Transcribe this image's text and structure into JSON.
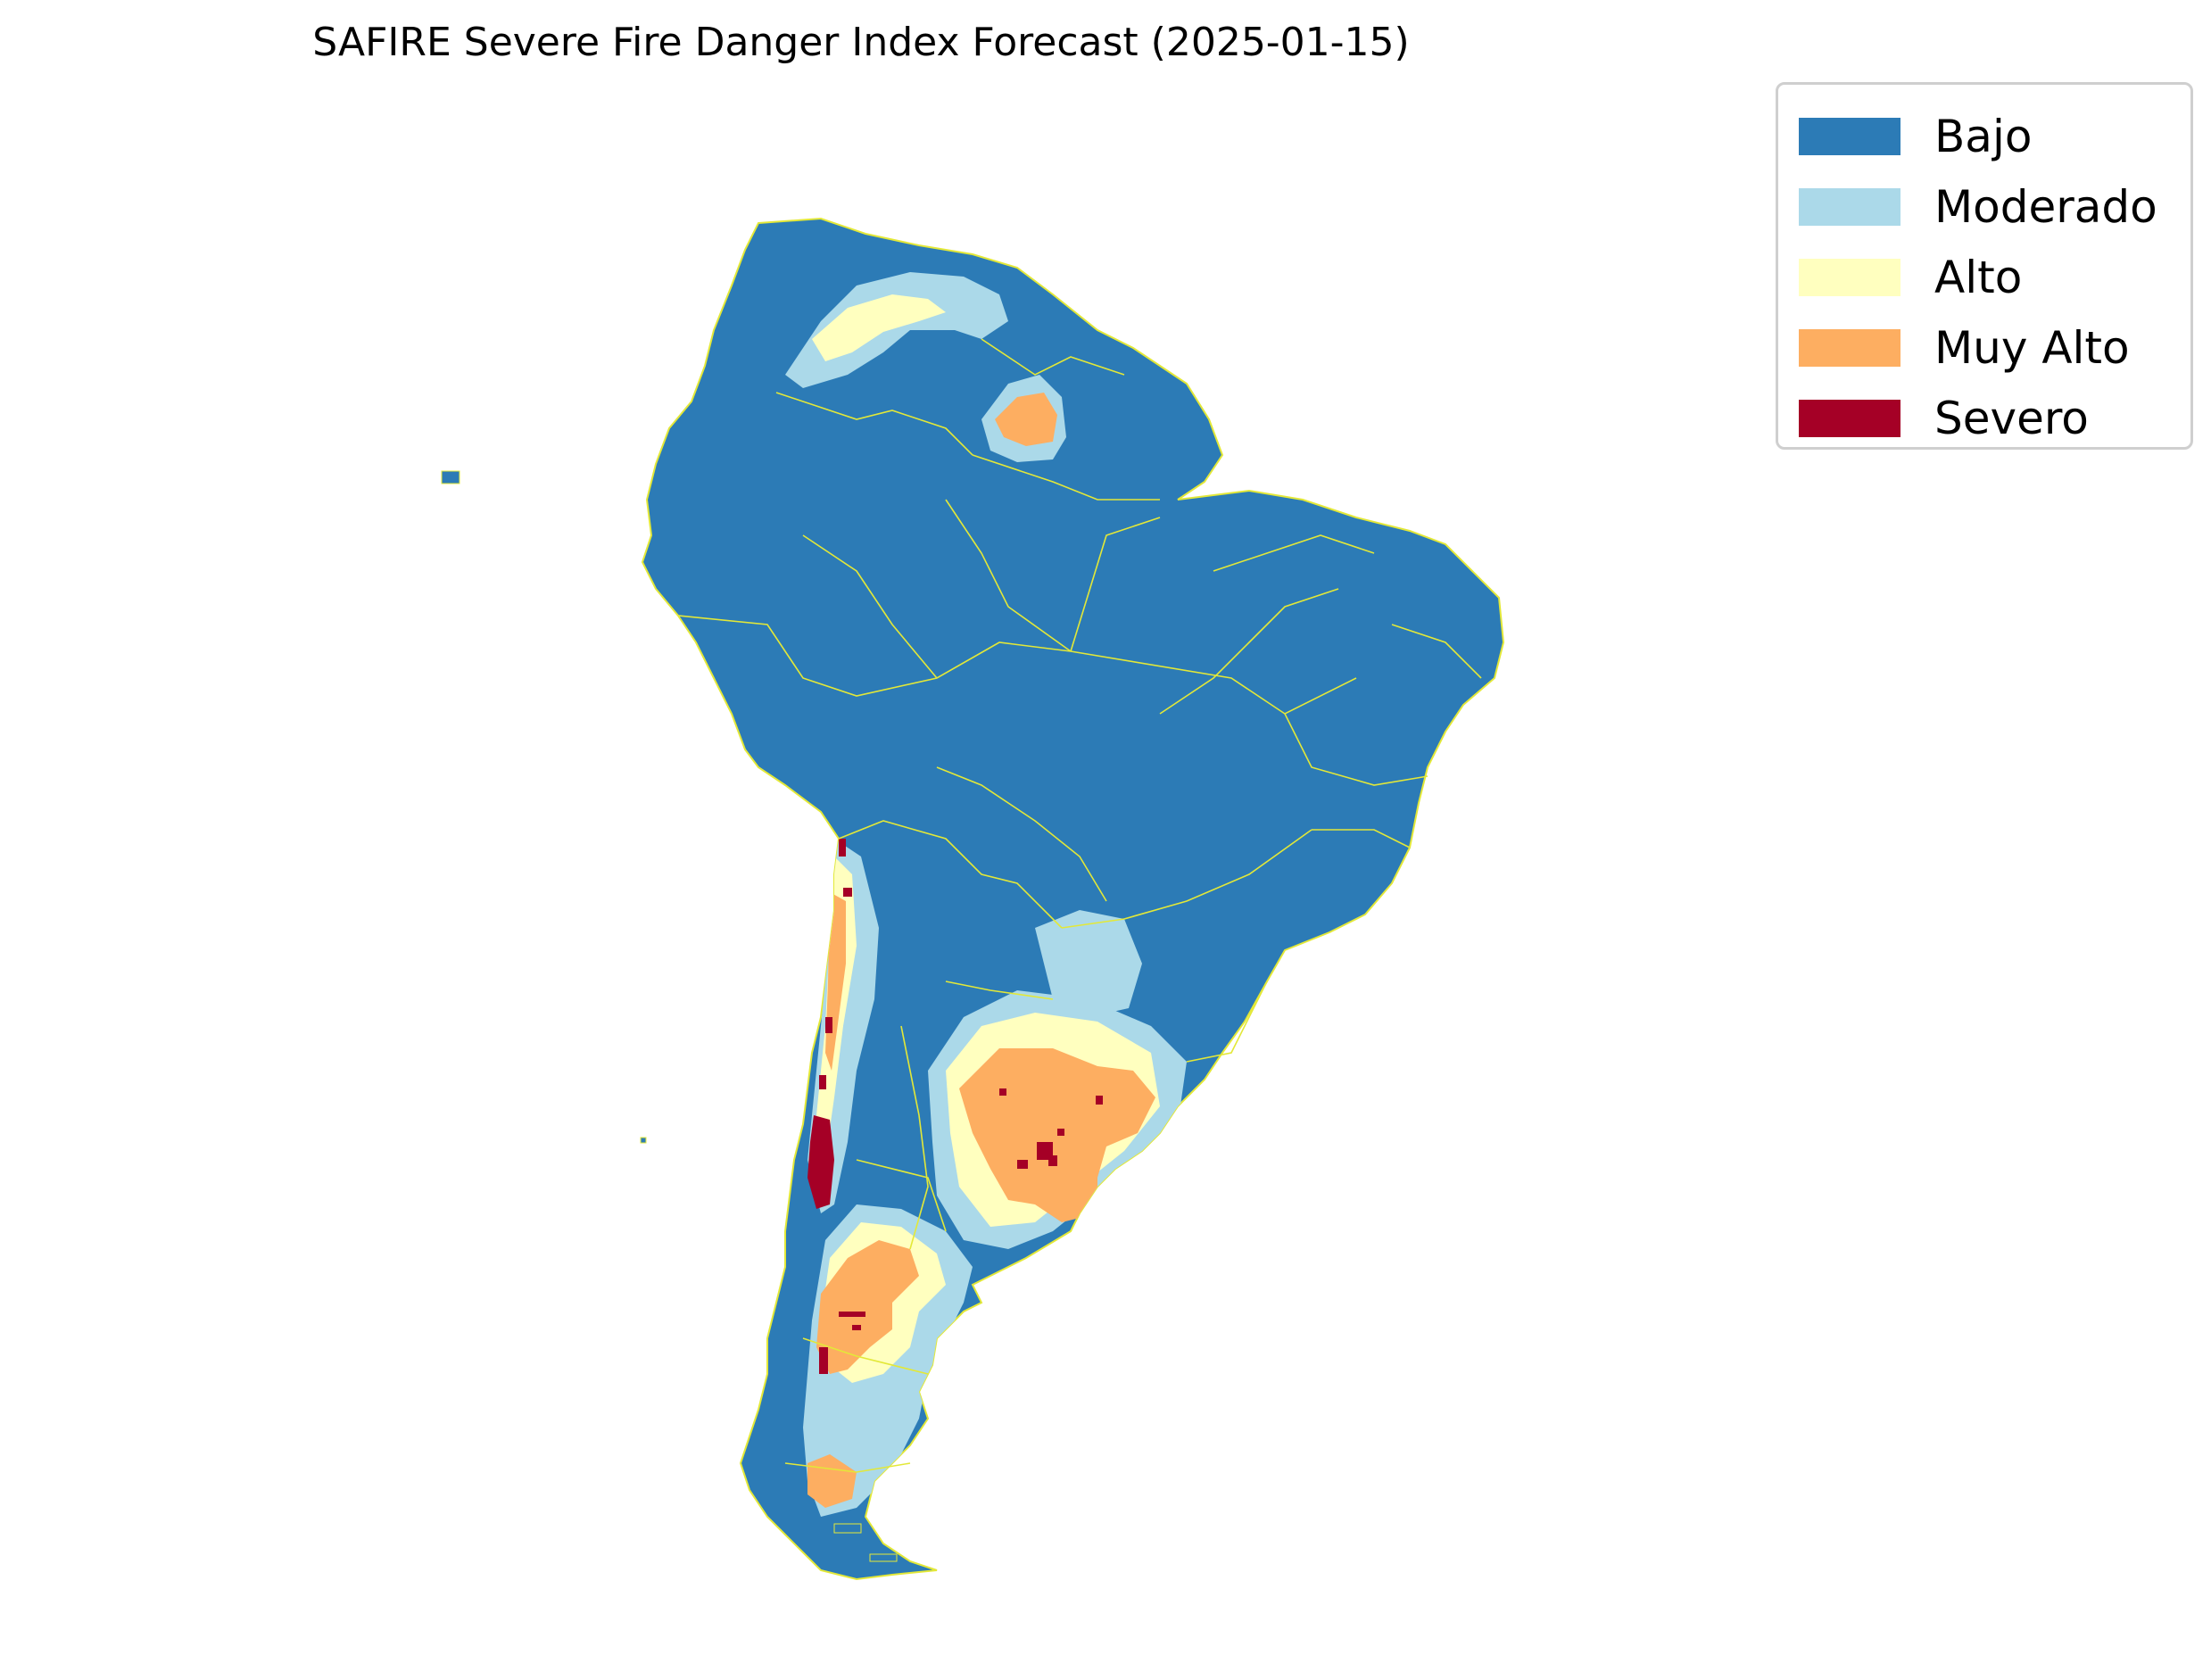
{
  "title": "SAFIRE Severe Fire Danger Index Forecast (2025-01-15)",
  "legend": {
    "items": [
      {
        "label": "Bajo",
        "color": "#2c7bb6"
      },
      {
        "label": "Moderado",
        "color": "#abd9e9"
      },
      {
        "label": "Alto",
        "color": "#ffffbf"
      },
      {
        "label": "Muy Alto",
        "color": "#fdae61"
      },
      {
        "label": "Severo",
        "color": "#a50026"
      }
    ]
  },
  "map": {
    "region": "South America",
    "border_color": "#e3e838"
  }
}
